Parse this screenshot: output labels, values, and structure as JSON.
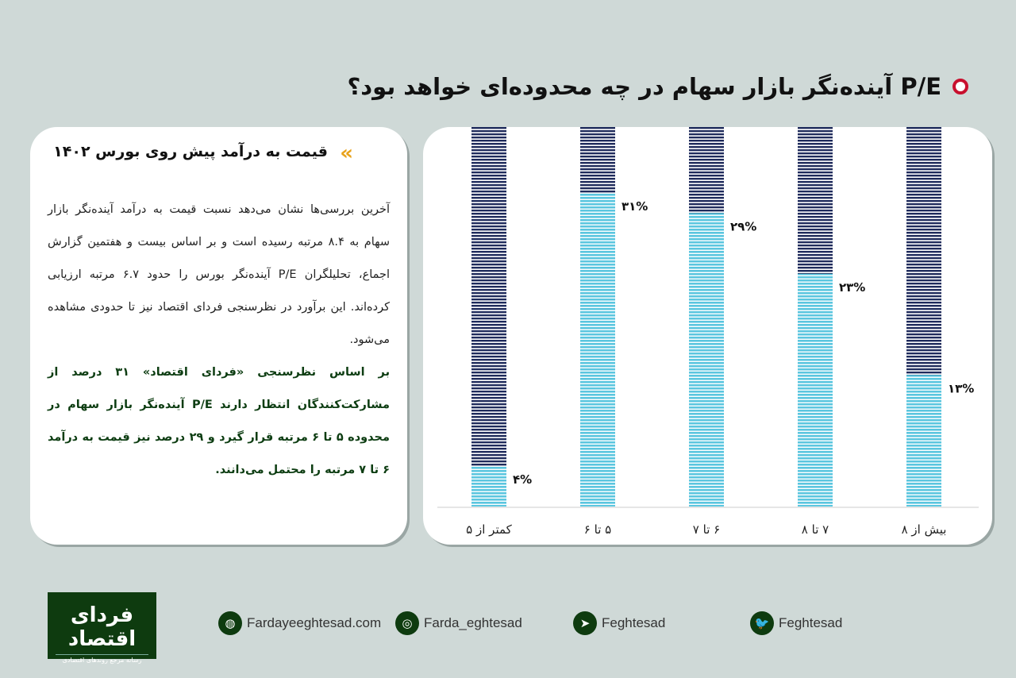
{
  "header": {
    "title": "P/E آینده‌نگر بازار سهام در چه محدوده‌ای خواهد بود؟"
  },
  "article": {
    "heading": "قیمت به درآمد پیش روی بورس ۱۴۰۲",
    "paragraph1": "آخرین بررسی‌ها نشان می‌دهد نسبت قیمت به درآمد آینده‌نگر بازار سهام به ۸.۴ مرتبه رسیده است و بر اساس بیست و هفتمین گزارش اجماع، تحلیلگران P/E آینده‌نگر بورس را حدود ۶.۷ مرتبه ارزیابی کرده‌اند. این برآورد در نظرسنجی فردای اقتصاد نیز تا حدودی مشاهده می‌شود.",
    "paragraph2": "بر اساس نظرسنجی «فردای اقتصاد» ۳۱ درصد از مشارکت‌کنندگان انتظار دارند P/E آینده‌نگر بازار سهام در محدوده ۵ تا ۶ مرتبه قرار گیرد و ۲۹ درصد نیز قیمت به درآمد ۶ تا ۷ مرتبه را محتمل می‌دانند."
  },
  "chart_data": {
    "type": "bar",
    "title": "P/E آینده‌نگر بازار سهام در چه محدوده‌ای خواهد بود؟",
    "categories": [
      "کمتر از ۵",
      "۵ تا ۶",
      "۶ تا ۷",
      "۷ تا ۸",
      "بیش از ۸"
    ],
    "values": [
      4,
      31,
      29,
      23,
      13
    ],
    "data_labels": [
      "۴%",
      "۳۱%",
      "۲۹%",
      "۲۳%",
      "۱۳%"
    ],
    "xlabel": "",
    "ylabel": "",
    "ylim": [
      0,
      37.5
    ],
    "colors": {
      "fill": "#5bc6df",
      "background_bar": "#1f2b5c"
    }
  },
  "footer": {
    "logo_text": "فردای اقتصاد",
    "logo_tagline": "رسانه مرجع روندهای اقتصادی",
    "social": [
      {
        "icon": "globe-icon",
        "label": "Fardayeeghtesad.com"
      },
      {
        "icon": "instagram-icon",
        "label": "Farda_eghtesad"
      },
      {
        "icon": "telegram-icon",
        "label": "Feghtesad"
      },
      {
        "icon": "twitter-icon",
        "label": "Feghtesad"
      }
    ]
  }
}
